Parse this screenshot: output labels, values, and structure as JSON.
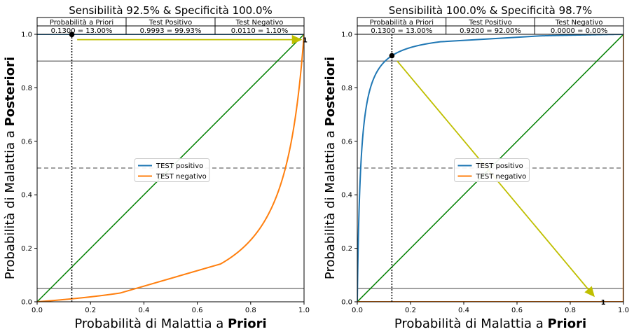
{
  "colors": {
    "positive": "#1f77b4",
    "negative": "#ff7f0e",
    "diagonal": "#008000",
    "arrow": "#bfbf00",
    "hline_solid": "#808080",
    "hline_dashed": "#808080"
  },
  "chart_data": [
    {
      "type": "line",
      "title": "Sensibilità 92.5%  &  Specificità 100.0%",
      "xlabel_prefix": "Probabilità di Malattia a ",
      "xlabel_bold": "Priori",
      "ylabel_prefix": "Probabilità di Malattia a ",
      "ylabel_bold": "Posteriori",
      "xlim": [
        0,
        1
      ],
      "ylim": [
        0,
        1
      ],
      "x_ticks": [
        "0.0",
        "0.2",
        "0.4",
        "0.6",
        "0.8",
        "1.0"
      ],
      "y_ticks": [
        "0.0",
        "0.2",
        "0.4",
        "0.6",
        "0.8",
        "1.0"
      ],
      "sensitivity": 0.925,
      "specificity": 1.0,
      "prior": 0.13,
      "table": {
        "headers": [
          "Probabilità a Priori",
          "Test Positivo",
          "Test Negativo"
        ],
        "values": [
          "0.1300 = 13.00%",
          "0.9993 = 99.93%",
          "0.0110 = 1.10%"
        ]
      },
      "legend": {
        "placement": "center",
        "entries": [
          "TEST positivo",
          "TEST negativo"
        ]
      },
      "series": [
        {
          "name": "TEST positivo",
          "curve": "positive"
        },
        {
          "name": "TEST negativo",
          "curve": "negative"
        }
      ],
      "hlines_solid": [
        0.05,
        0.9
      ],
      "hline_dashed": 0.5,
      "vline_dotted": 0.13,
      "marker": {
        "x": 0.13,
        "y": 0.9993
      },
      "arrow": {
        "from": [
          0.15,
          0.98
        ],
        "to": [
          0.99,
          0.98
        ]
      },
      "annotation": {
        "text": "1",
        "x": 1.0,
        "y": 0.98
      }
    },
    {
      "type": "line",
      "title": "Sensibilità 100.0%  &  Specificità 98.7%",
      "xlabel_prefix": "Probabilità di Malattia a ",
      "xlabel_bold": "Priori",
      "ylabel_prefix": "Probabilità di Malattia a ",
      "ylabel_bold": "Posteriori",
      "xlim": [
        0,
        1
      ],
      "ylim": [
        0,
        1
      ],
      "x_ticks": [
        "0.0",
        "0.2",
        "0.4",
        "0.6",
        "0.8",
        "1.0"
      ],
      "y_ticks": [
        "0.0",
        "0.2",
        "0.4",
        "0.6",
        "0.8",
        "1.0"
      ],
      "sensitivity": 1.0,
      "specificity": 0.987,
      "prior": 0.13,
      "table": {
        "headers": [
          "Probabilità a Priori",
          "Test Positivo",
          "Test Negativo"
        ],
        "values": [
          "0.1300 = 13.00%",
          "0.9200 = 92.00%",
          "0.0000 = 0.00%"
        ]
      },
      "legend": {
        "placement": "center",
        "entries": [
          "TEST positivo",
          "TEST negativo"
        ]
      },
      "series": [
        {
          "name": "TEST positivo",
          "curve": "positive"
        },
        {
          "name": "TEST negativo",
          "curve": "negative"
        }
      ],
      "hlines_solid": [
        0.05,
        0.9
      ],
      "hline_dashed": 0.5,
      "vline_dotted": 0.13,
      "marker": {
        "x": 0.13,
        "y": 0.92
      },
      "arrow": {
        "from": [
          0.15,
          0.9
        ],
        "to": [
          0.89,
          0.02
        ]
      },
      "annotation": {
        "text": "1",
        "x": 0.92,
        "y": 0.0
      }
    }
  ]
}
